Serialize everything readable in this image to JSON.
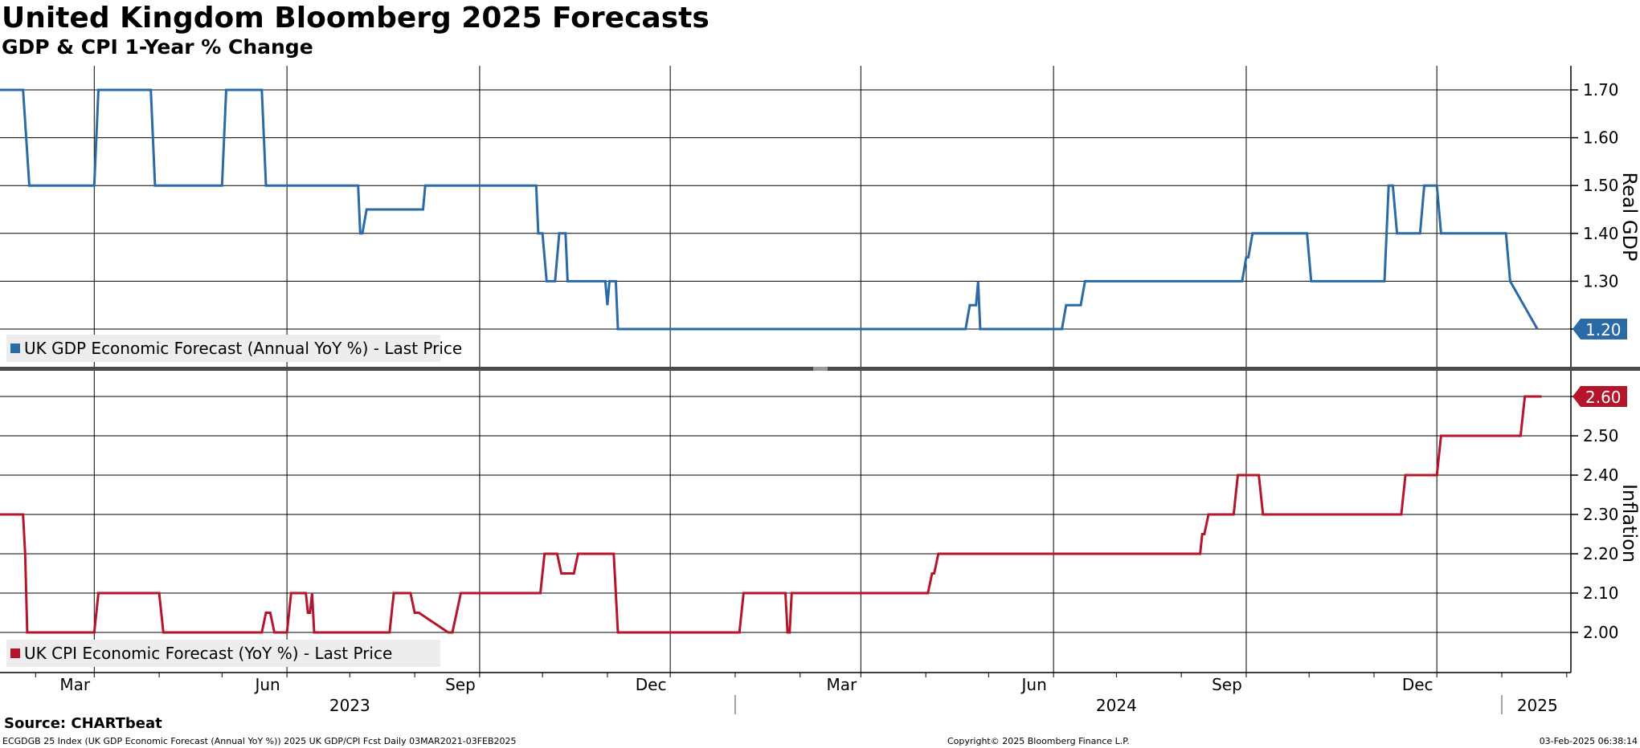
{
  "header": {
    "title": "United Kingdom Bloomberg 2025 Forecasts",
    "subtitle": "GDP & CPI 1-Year % Change"
  },
  "footer": {
    "source": "Source: CHARTbeat",
    "left": "ECGDGB 25 Index (UK GDP Economic Forecast (Annual YoY %)) 2025 UK GDP/CPI Fcst  Daily 03MAR2021-03FEB2025",
    "center": "Copyright© 2025 Bloomberg Finance L.P.",
    "right": "03-Feb-2025 06:38:14"
  },
  "chart_data": [
    {
      "type": "line",
      "panel": "top",
      "ylabel": "Real GDP",
      "ylim": [
        1.13,
        1.75
      ],
      "yticks": [
        1.7,
        1.6,
        1.5,
        1.4,
        1.3,
        1.2
      ],
      "ytick_labels": [
        "1.70",
        "1.60",
        "1.50",
        "1.40",
        "1.30"
      ],
      "legend": "top-left",
      "color": "#2a6aa6",
      "series": [
        {
          "name": "UK GDP Economic Forecast (Annual YoY %) - Last Price",
          "last_value": "1.20",
          "x": [
            "2023-01-15",
            "2023-01-26",
            "2023-01-29",
            "2023-03-01",
            "2023-03-03",
            "2023-03-28",
            "2023-03-30",
            "2023-05-01",
            "2023-05-03",
            "2023-05-20",
            "2023-05-22",
            "2023-07-05",
            "2023-07-06",
            "2023-07-07",
            "2023-07-09",
            "2023-08-05",
            "2023-08-06",
            "2023-09-28",
            "2023-09-29",
            "2023-10-01",
            "2023-10-03",
            "2023-10-07",
            "2023-10-09",
            "2023-10-12",
            "2023-10-13",
            "2023-10-31",
            "2023-11-01",
            "2023-11-02",
            "2023-11-05",
            "2023-11-06",
            "2023-11-08",
            "2024-04-20",
            "2024-04-22",
            "2024-04-25",
            "2024-04-26",
            "2024-04-27",
            "2024-06-05",
            "2024-06-07",
            "2024-06-14",
            "2024-06-16",
            "2024-08-30",
            "2024-09-01",
            "2024-09-02",
            "2024-09-04",
            "2024-09-30",
            "2024-10-02",
            "2024-11-06",
            "2024-11-08",
            "2024-11-10",
            "2024-11-12",
            "2024-11-23",
            "2024-11-25",
            "2024-12-01",
            "2024-12-03",
            "2025-01-03",
            "2025-01-05",
            "2025-01-18"
          ],
          "values": [
            1.7,
            1.7,
            1.5,
            1.5,
            1.7,
            1.7,
            1.5,
            1.5,
            1.7,
            1.7,
            1.5,
            1.5,
            1.4,
            1.4,
            1.45,
            1.45,
            1.5,
            1.5,
            1.4,
            1.4,
            1.3,
            1.3,
            1.4,
            1.4,
            1.3,
            1.3,
            1.25,
            1.3,
            1.3,
            1.2,
            1.2,
            1.2,
            1.25,
            1.25,
            1.3,
            1.2,
            1.2,
            1.25,
            1.25,
            1.3,
            1.3,
            1.35,
            1.35,
            1.4,
            1.4,
            1.3,
            1.3,
            1.5,
            1.5,
            1.4,
            1.4,
            1.5,
            1.5,
            1.4,
            1.4,
            1.3,
            1.2
          ]
        }
      ]
    },
    {
      "type": "line",
      "panel": "bottom",
      "ylabel": "Inflation",
      "ylim": [
        1.9,
        2.62
      ],
      "yticks": [
        2.6,
        2.5,
        2.4,
        2.3,
        2.2,
        2.1,
        2.0
      ],
      "ytick_labels": [
        "2.50",
        "2.40",
        "2.30",
        "2.20",
        "2.10",
        "2.00"
      ],
      "legend": "bottom-left",
      "color": "#b5152b",
      "series": [
        {
          "name": "UK CPI Economic Forecast (YoY %) - Last Price",
          "last_value": "2.60",
          "x": [
            "2023-01-15",
            "2023-01-26",
            "2023-01-27",
            "2023-01-28",
            "2023-03-01",
            "2023-03-03",
            "2023-04-01",
            "2023-04-03",
            "2023-05-20",
            "2023-05-22",
            "2023-05-24",
            "2023-05-26",
            "2023-06-01",
            "2023-06-03",
            "2023-06-10",
            "2023-06-11",
            "2023-06-12",
            "2023-06-13",
            "2023-06-14",
            "2023-07-20",
            "2023-07-22",
            "2023-07-30",
            "2023-08-01",
            "2023-08-03",
            "2023-08-17",
            "2023-08-19",
            "2023-08-21",
            "2023-08-23",
            "2023-09-30",
            "2023-10-02",
            "2023-10-08",
            "2023-10-10",
            "2023-10-16",
            "2023-10-18",
            "2023-11-04",
            "2023-11-06",
            "2024-01-03",
            "2024-01-05",
            "2024-01-25",
            "2024-01-26",
            "2024-01-27",
            "2024-01-28",
            "2024-04-02",
            "2024-04-04",
            "2024-04-05",
            "2024-04-07",
            "2024-08-10",
            "2024-08-11",
            "2024-08-12",
            "2024-08-14",
            "2024-08-26",
            "2024-08-28",
            "2024-09-07",
            "2024-09-09",
            "2024-11-14",
            "2024-11-16",
            "2024-12-01",
            "2024-12-03",
            "2025-01-10",
            "2025-01-12",
            "2025-01-20"
          ],
          "values": [
            2.3,
            2.3,
            2.2,
            2.0,
            2.0,
            2.1,
            2.1,
            2.0,
            2.0,
            2.05,
            2.05,
            2.0,
            2.0,
            2.1,
            2.1,
            2.05,
            2.05,
            2.1,
            2.0,
            2.0,
            2.1,
            2.1,
            2.05,
            2.05,
            2.0,
            2.0,
            2.05,
            2.1,
            2.1,
            2.2,
            2.2,
            2.15,
            2.15,
            2.2,
            2.2,
            2.0,
            2.0,
            2.1,
            2.1,
            2.0,
            2.0,
            2.1,
            2.1,
            2.15,
            2.15,
            2.2,
            2.2,
            2.25,
            2.25,
            2.3,
            2.3,
            2.4,
            2.4,
            2.3,
            2.3,
            2.4,
            2.4,
            2.5,
            2.5,
            2.6,
            2.6
          ]
        }
      ]
    }
  ],
  "x_axis": {
    "range": [
      "2023-01-15",
      "2025-02-03"
    ],
    "gridlines": [
      "2023-03-01",
      "2023-06-01",
      "2023-09-01",
      "2023-12-01",
      "2024-03-01",
      "2024-06-01",
      "2024-09-01",
      "2024-12-01"
    ],
    "month_labels": [
      {
        "label": "Mar",
        "date": "2023-03-01"
      },
      {
        "label": "Jun",
        "date": "2023-06-01"
      },
      {
        "label": "Sep",
        "date": "2023-09-01"
      },
      {
        "label": "Dec",
        "date": "2023-12-01"
      },
      {
        "label": "Mar",
        "date": "2024-03-01"
      },
      {
        "label": "Jun",
        "date": "2024-06-01"
      },
      {
        "label": "Sep",
        "date": "2024-09-01"
      },
      {
        "label": "Dec",
        "date": "2024-12-01"
      }
    ],
    "year_labels": [
      {
        "label": "2023",
        "date": "2023-07-01"
      },
      {
        "label": "2024",
        "date": "2024-07-01"
      },
      {
        "label": "2025",
        "date": "2025-01-18"
      }
    ],
    "year_separators": [
      "2024-01-01",
      "2025-01-01"
    ]
  },
  "colors": {
    "gdp": "#2a6aa6",
    "cpi": "#b5152b",
    "grid": "#000000",
    "divider": "#4a4a4a"
  }
}
